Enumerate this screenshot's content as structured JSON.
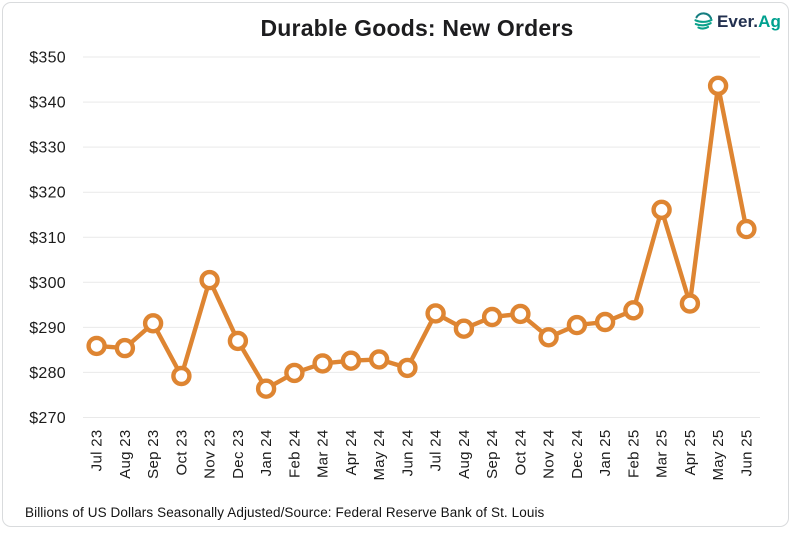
{
  "header": {
    "title": "Durable Goods: New Orders",
    "logo": {
      "icon": "everag-swoosh-globe-icon",
      "text_primary": "Ever.",
      "text_accent": "Ag",
      "primary_color": "#22304F",
      "accent_color": "#00A18F"
    }
  },
  "footer": {
    "source_note": "Billions of US Dollars Seasonally Adjusted/Source: Federal Reserve Bank of St. Louis"
  },
  "chart_data": {
    "type": "line",
    "title": "Durable Goods: New Orders",
    "xlabel": "",
    "ylabel": "",
    "x": [
      "Jul 23",
      "Aug 23",
      "Sep 23",
      "Oct 23",
      "Nov 23",
      "Dec 23",
      "Jan 24",
      "Feb 24",
      "Mar 24",
      "Apr 24",
      "May 24",
      "Jun 24",
      "Jul 24",
      "Aug 24",
      "Sep 24",
      "Oct 24",
      "Nov 24",
      "Dec 24",
      "Jan 25",
      "Feb 25",
      "Mar 25",
      "Apr 25",
      "May 25",
      "Jun 25"
    ],
    "values": [
      285.9,
      285.4,
      290.9,
      279.2,
      300.5,
      287.0,
      276.4,
      279.9,
      282.0,
      282.6,
      282.9,
      281.0,
      293.1,
      289.7,
      292.3,
      293.0,
      287.8,
      290.5,
      291.2,
      293.8,
      316.1,
      295.3,
      343.6,
      311.8
    ],
    "ylim": [
      270,
      350
    ],
    "ytick_step": 10,
    "ytick_prefix": "$",
    "grid": "horizontal",
    "legend": "none",
    "line_color": "#DE8532",
    "marker": "open-circle",
    "marker_fill": "#FFFFFF",
    "gridline_color": "#E9E9E9"
  }
}
